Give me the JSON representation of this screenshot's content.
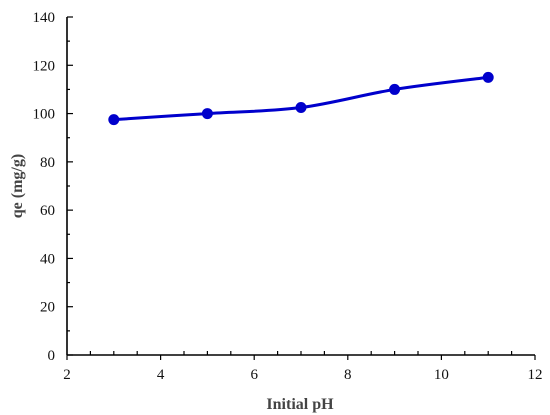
{
  "chart_data": {
    "type": "line",
    "title": "",
    "xlabel": "Initial pH",
    "ylabel": "qe (mg/g)",
    "xlim": [
      2,
      12
    ],
    "ylim": [
      0,
      140
    ],
    "x_ticks": [
      2,
      4,
      6,
      8,
      10,
      12
    ],
    "y_ticks": [
      0,
      20,
      40,
      60,
      80,
      100,
      120,
      140
    ],
    "grid": false,
    "legend": "none",
    "series": [
      {
        "x": [
          3,
          5,
          7,
          9,
          11
        ],
        "y": [
          97.5,
          100,
          102.5,
          110,
          115
        ],
        "color": "#0000cc",
        "marker": "circle"
      }
    ]
  }
}
